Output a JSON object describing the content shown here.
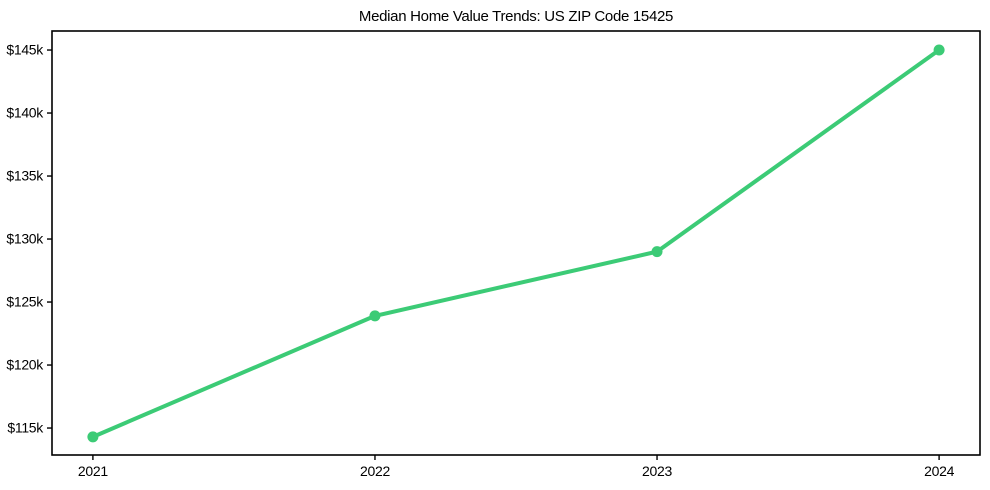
{
  "chart_data": {
    "type": "line",
    "title": "Median Home Value Trends: US ZIP Code 15425",
    "x": [
      2021,
      2022,
      2023,
      2024
    ],
    "x_tick_labels": [
      "2021",
      "2022",
      "2023",
      "2024"
    ],
    "series": [
      {
        "values": [
          114300,
          123900,
          129000,
          145000
        ],
        "color": "#3ccb76"
      }
    ],
    "y_tick_values": [
      115000,
      120000,
      125000,
      130000,
      135000,
      140000,
      145000
    ],
    "y_tick_labels": [
      "$115k",
      "$120k",
      "$125k",
      "$130k",
      "$135k",
      "$140k",
      "$145k"
    ],
    "xlim": [
      2020.855,
      2024.145
    ],
    "ylim": [
      112860,
      146510
    ],
    "xlabel": "",
    "ylabel": "",
    "grid": false,
    "legend": "none",
    "marker": "circle",
    "axis_color": "#000000",
    "text_color": "#000000",
    "background_color": "#ffffff"
  }
}
